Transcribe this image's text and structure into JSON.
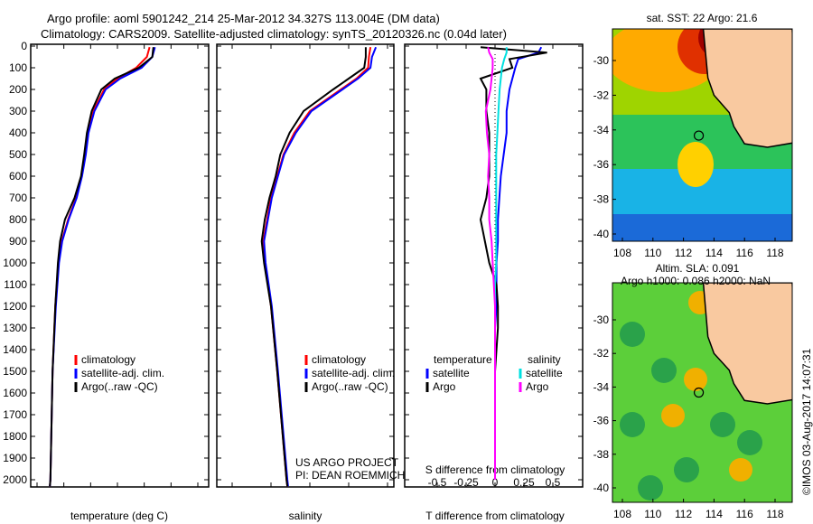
{
  "title_line1": "Argo profile: aoml 5901242_214 25-Mar-2012 34.327S 113.004E (DM data)",
  "title_line2": "Climatology: CARS2009. Satellite-adjusted climatology: synTS_20120326.nc (0.04d later)",
  "credit": "©IMOS 03-Aug-2017 14:07:31",
  "colors": {
    "climatology": "#ff0000",
    "satellite": "#0000ff",
    "argo": "#000000",
    "sal_sat": "#00e0e0",
    "sal_argo": "#ff00ff",
    "land": "#f9c9a0"
  },
  "chart_data": [
    {
      "type": "line",
      "name": "temperature",
      "xlabel": "temperature (deg C)",
      "ylabel": "depth",
      "xlim": [
        -1,
        31
      ],
      "ylim": [
        2050,
        0
      ],
      "xticks": [
        0,
        5,
        10,
        15,
        20,
        25,
        30
      ],
      "yticks": [
        0,
        100,
        200,
        300,
        400,
        500,
        600,
        700,
        800,
        900,
        1000,
        1100,
        1200,
        1300,
        1400,
        1500,
        1600,
        1700,
        1800,
        1900,
        2000
      ],
      "depth": [
        5,
        50,
        100,
        150,
        200,
        300,
        400,
        500,
        600,
        700,
        800,
        900,
        1000,
        1200,
        1500,
        2000,
        2030
      ],
      "series": [
        {
          "name": "climatology",
          "values": [
            21,
            20.5,
            18.5,
            15,
            12.5,
            10.5,
            9.5,
            9,
            8.3,
            7.3,
            5.8,
            4.6,
            4,
            3.4,
            2.9,
            2.5,
            2.4
          ]
        },
        {
          "name": "satellite-adj. clim.",
          "values": [
            22,
            21.5,
            19.5,
            15.5,
            12.8,
            10.7,
            9.6,
            9.1,
            8.4,
            7.4,
            5.9,
            4.7,
            4.1,
            3.5,
            2.9,
            2.5,
            2.4
          ]
        },
        {
          "name": "Argo(..raw -QC)",
          "values": [
            21.7,
            21.5,
            19,
            14.5,
            12,
            10.2,
            9.3,
            8.8,
            8.2,
            7,
            5.2,
            4.3,
            3.9,
            3.4,
            2.9,
            2.5,
            2.4
          ]
        }
      ],
      "legend": [
        "climatology",
        "satellite-adj. clim.",
        "Argo(..raw -QC)"
      ]
    },
    {
      "type": "line",
      "name": "salinity",
      "xlabel": "salinity",
      "xlim": [
        33.85,
        36.15
      ],
      "ylim": [
        2050,
        0
      ],
      "xticks": [
        34,
        34.5,
        35,
        35.5,
        36
      ],
      "depth": [
        5,
        50,
        100,
        150,
        200,
        300,
        400,
        500,
        600,
        700,
        800,
        900,
        1000,
        1200,
        1500,
        2000,
        2030
      ],
      "series": [
        {
          "name": "climatology",
          "values": [
            35.78,
            35.76,
            35.75,
            35.6,
            35.4,
            35.0,
            34.8,
            34.66,
            34.58,
            34.5,
            34.45,
            34.4,
            34.42,
            34.5,
            34.58,
            34.7,
            34.71
          ]
        },
        {
          "name": "satellite-adj. clim.",
          "values": [
            35.85,
            35.8,
            35.78,
            35.62,
            35.42,
            35.02,
            34.82,
            34.67,
            34.59,
            34.51,
            34.46,
            34.41,
            34.43,
            34.51,
            34.59,
            34.71,
            34.72
          ]
        },
        {
          "name": "Argo(..raw -QC)",
          "values": [
            35.72,
            35.72,
            35.7,
            35.5,
            35.3,
            34.92,
            34.74,
            34.62,
            34.56,
            34.48,
            34.42,
            34.38,
            34.41,
            34.5,
            34.58,
            34.7,
            34.71
          ]
        }
      ],
      "legend": [
        "climatology",
        "satellite-adj. clim.",
        "Argo(..raw -QC)"
      ],
      "annotation": [
        "US ARGO PROJECT",
        "PI: DEAN ROEMMICH"
      ]
    },
    {
      "type": "line",
      "name": "difference",
      "xlabel": "T difference from climatology",
      "xlabel2": "S difference from climatology",
      "xlim": [
        -2.5,
        3
      ],
      "xticks": [
        -2,
        -1,
        0,
        1,
        2
      ],
      "xticks2": [
        -0.5,
        -0.25,
        0,
        0.25,
        0.5
      ],
      "ylim": [
        2050,
        0
      ],
      "depth": [
        5,
        30,
        60,
        100,
        150,
        200,
        300,
        400,
        500,
        600,
        700,
        800,
        900,
        1000,
        1100,
        1200,
        1300,
        1500,
        2000
      ],
      "series": [
        {
          "name": "T satellite",
          "group": "temperature",
          "values": [
            1.6,
            1.5,
            0.8,
            0.7,
            0.6,
            0.5,
            0.4,
            0.4,
            0.3,
            0.2,
            0.15,
            0.1,
            0.1,
            0.05,
            0.05,
            0.05,
            0,
            0,
            0
          ]
        },
        {
          "name": "T Argo",
          "group": "temperature",
          "values": [
            -0.5,
            1.8,
            0.5,
            0.6,
            -0.5,
            -0.3,
            -0.3,
            -0.2,
            -0.2,
            -0.2,
            -0.3,
            -0.5,
            -0.35,
            -0.2,
            0.05,
            0.1,
            0.1,
            0,
            0
          ]
        },
        {
          "name": "S satellite",
          "group": "salinity",
          "values": [
            0.1,
            0.1,
            0.08,
            0.06,
            0.05,
            0.04,
            0.03,
            0.02,
            0.01,
            0.01,
            0.01,
            0.01,
            0.01,
            0.01,
            0,
            0,
            0,
            0,
            0
          ]
        },
        {
          "name": "S Argo",
          "group": "salinity",
          "values": [
            -0.06,
            -0.05,
            -0.02,
            -0.02,
            -0.03,
            -0.04,
            -0.08,
            -0.07,
            -0.05,
            -0.06,
            -0.05,
            -0.05,
            -0.03,
            -0.02,
            -0.01,
            0,
            0,
            0,
            0
          ]
        }
      ],
      "legend_headers": [
        "temperature",
        "salinity"
      ],
      "legend": [
        "satellite",
        "Argo",
        "satellite",
        "Argo"
      ]
    },
    {
      "type": "heatmap",
      "name": "sst-map",
      "title": "sat. SST: 22 Argo: 21.6",
      "xticks": [
        108,
        110,
        112,
        114,
        116,
        118
      ],
      "yticks": [
        -30,
        -32,
        -34,
        -36,
        -38,
        -40
      ],
      "xlim": [
        107.3,
        119.3
      ],
      "ylim": [
        -40.4,
        -28.2
      ],
      "marker": [
        113.004,
        -34.327
      ]
    },
    {
      "type": "heatmap",
      "name": "sla-map",
      "title": "Altim. SLA: 0.091",
      "subtitle": "Argo h1000: 0.086 h2000: NaN",
      "xticks": [
        108,
        110,
        112,
        114,
        116,
        118
      ],
      "yticks": [
        -30,
        -32,
        -34,
        -36,
        -38,
        -40
      ],
      "xlim": [
        107.3,
        119.3
      ],
      "ylim": [
        -40.4,
        -27.8
      ],
      "marker": [
        113.004,
        -34.327
      ]
    }
  ]
}
